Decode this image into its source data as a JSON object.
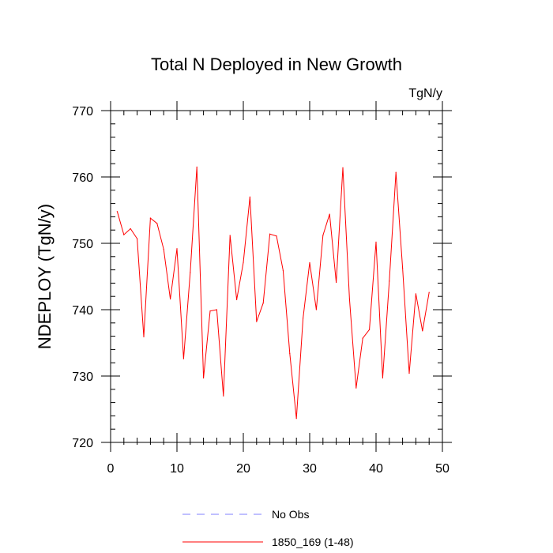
{
  "chart_data": {
    "type": "line",
    "title": "Total N Deployed in New Growth",
    "units": "TgN/y",
    "xlabel": "",
    "ylabel": "NDEPLOY  (TgN/y)",
    "xlim": [
      0,
      50
    ],
    "ylim": [
      720,
      770
    ],
    "x_ticks": [
      0,
      10,
      20,
      30,
      40,
      50
    ],
    "y_ticks": [
      720,
      730,
      740,
      750,
      760,
      770
    ],
    "x_minor_step": 2,
    "y_minor_step": 2,
    "grid": false,
    "legend_position": "bottom",
    "series": [
      {
        "name": "No Obs",
        "color": "#8080ff",
        "dash": "dashed",
        "x": [],
        "values": []
      },
      {
        "name": "1850_169 (1-48)",
        "color": "#ff0000",
        "dash": "solid",
        "x": [
          1,
          2,
          3,
          4,
          5,
          6,
          7,
          8,
          9,
          10,
          11,
          12,
          13,
          14,
          15,
          16,
          17,
          18,
          19,
          20,
          21,
          22,
          23,
          24,
          25,
          26,
          27,
          28,
          29,
          30,
          31,
          32,
          33,
          34,
          35,
          36,
          37,
          38,
          39,
          40,
          41,
          42,
          43,
          44,
          45,
          46,
          47,
          48
        ],
        "values": [
          754.8,
          751.3,
          752.2,
          750.7,
          735.9,
          753.8,
          753.0,
          749.1,
          741.6,
          749.2,
          732.6,
          745.6,
          761.5,
          729.7,
          739.8,
          740.0,
          727.0,
          751.2,
          741.5,
          747.1,
          757.0,
          738.2,
          741.0,
          751.4,
          751.1,
          745.9,
          733.4,
          723.6,
          738.7,
          747.1,
          740.0,
          751.2,
          754.4,
          744.1,
          761.4,
          741.6,
          728.2,
          735.7,
          737.0,
          750.2,
          729.7,
          744.3,
          760.7,
          746.3,
          730.4,
          742.4,
          736.8,
          742.6
        ]
      }
    ]
  }
}
